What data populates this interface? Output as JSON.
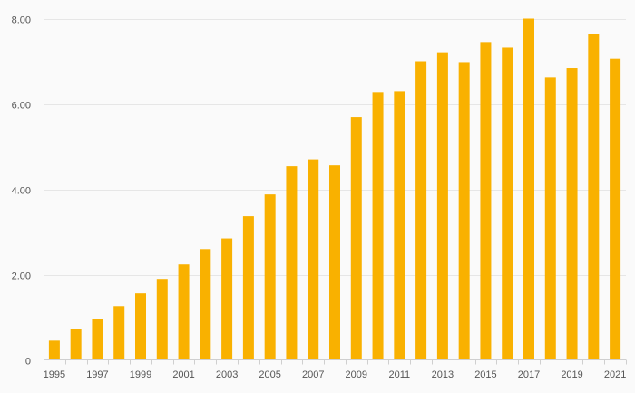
{
  "chart_data": {
    "type": "bar",
    "title": "",
    "xlabel": "",
    "ylabel": "",
    "color": "#f9b100",
    "categories": [
      "1995",
      "1996",
      "1997",
      "1998",
      "1999",
      "2000",
      "2001",
      "2002",
      "2003",
      "2004",
      "2005",
      "2006",
      "2007",
      "2008",
      "2009",
      "2010",
      "2011",
      "2012",
      "2013",
      "2014",
      "2015",
      "2016",
      "2017",
      "2018",
      "2019",
      "2020",
      "2021"
    ],
    "values": [
      0.45,
      0.73,
      0.96,
      1.26,
      1.56,
      1.9,
      2.24,
      2.6,
      2.85,
      3.37,
      3.88,
      4.54,
      4.7,
      4.56,
      5.69,
      6.28,
      6.3,
      7.0,
      7.21,
      6.98,
      7.45,
      7.32,
      8.0,
      6.62,
      6.84,
      7.64,
      7.06
    ],
    "ylim": [
      0,
      8
    ],
    "y_ticks": [
      {
        "value": 0,
        "label": "0"
      },
      {
        "value": 2,
        "label": "2.00"
      },
      {
        "value": 4,
        "label": "4.00"
      },
      {
        "value": 6,
        "label": "6.00"
      },
      {
        "value": 8,
        "label": "8.00"
      }
    ],
    "x_tick_labels": [
      "1995",
      "1997",
      "1999",
      "2001",
      "2003",
      "2005",
      "2007",
      "2009",
      "2011",
      "2013",
      "2015",
      "2017",
      "2019",
      "2021"
    ],
    "grid": true,
    "legend": "none"
  }
}
